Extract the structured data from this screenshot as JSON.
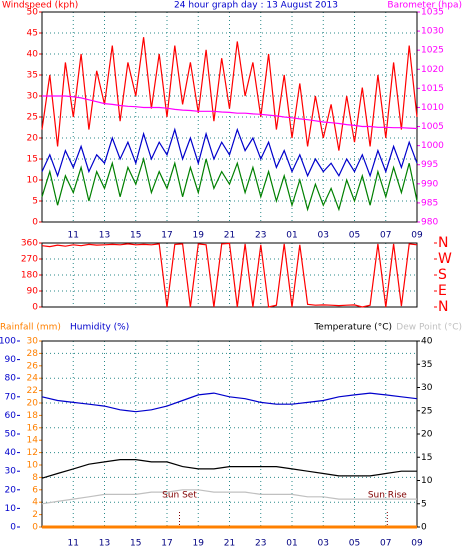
{
  "chart_data": [
    {
      "type": "line",
      "title": "24 hour graph day : 13 August 2013",
      "ylabel": "Windspeed (kph)",
      "y2label": "Barometer (hpa)",
      "x": [
        9,
        9.5,
        10,
        10.5,
        11,
        11.5,
        12,
        12.5,
        13,
        13.5,
        14,
        14.5,
        15,
        15.5,
        16,
        16.5,
        17,
        17.5,
        18,
        18.5,
        19,
        19.5,
        20,
        20.5,
        21,
        21.5,
        22,
        22.5,
        23,
        23.5,
        24,
        24.5,
        25,
        25.5,
        26,
        26.5,
        27,
        27.5,
        28,
        28.5,
        29,
        29.5,
        30,
        30.5,
        31,
        31.5,
        32,
        32.5,
        33
      ],
      "xlim": [
        9,
        33
      ],
      "xticks": [
        11,
        13,
        15,
        17,
        19,
        21,
        23,
        {
          "value": 25,
          "label": "01"
        },
        {
          "value": 27,
          "label": "03"
        },
        {
          "value": 29,
          "label": "05"
        },
        {
          "value": 31,
          "label": "07"
        },
        {
          "value": 33,
          "label": "09"
        }
      ],
      "ylim": [
        0,
        50
      ],
      "yticks": [
        0,
        5,
        10,
        15,
        20,
        25,
        30,
        35,
        40,
        45,
        50
      ],
      "y2lim": [
        980,
        1035
      ],
      "y2ticks": [
        980,
        985,
        990,
        995,
        1000,
        1005,
        1010,
        1015,
        1020,
        1025,
        1030,
        1035
      ],
      "grid": true,
      "series": [
        {
          "color": "#ff0000",
          "values": [
            22,
            35,
            18,
            38,
            25,
            40,
            22,
            36,
            28,
            42,
            24,
            38,
            30,
            44,
            27,
            40,
            25,
            42,
            28,
            38,
            26,
            41,
            24,
            39,
            27,
            43,
            30,
            38,
            25,
            40,
            22,
            35,
            20,
            33,
            18,
            30,
            20,
            28,
            17,
            30,
            19,
            32,
            18,
            35,
            20,
            38,
            22,
            42,
            25
          ]
        },
        {
          "color": "#0000cc",
          "values": [
            12,
            16,
            11,
            17,
            13,
            18,
            12,
            16,
            14,
            20,
            15,
            19,
            14,
            21,
            15,
            19,
            16,
            22,
            15,
            20,
            14,
            21,
            15,
            19,
            16,
            22,
            17,
            20,
            15,
            19,
            13,
            17,
            12,
            16,
            11,
            15,
            12,
            14,
            11,
            15,
            12,
            16,
            11,
            17,
            12,
            18,
            13,
            19,
            14
          ]
        },
        {
          "color": "#008000",
          "values": [
            6,
            12,
            4,
            11,
            7,
            13,
            5,
            12,
            8,
            14,
            6,
            13,
            9,
            15,
            7,
            12,
            8,
            14,
            6,
            13,
            7,
            15,
            8,
            12,
            9,
            14,
            7,
            13,
            6,
            12,
            5,
            11,
            4,
            10,
            3,
            9,
            4,
            8,
            3,
            10,
            5,
            11,
            4,
            12,
            6,
            13,
            7,
            14,
            5
          ]
        },
        {
          "color": "#ff00ff",
          "axis": "y2",
          "values": [
            1013,
            1013,
            1013,
            1013,
            1012.8,
            1012.5,
            1012,
            1011.5,
            1011,
            1010.8,
            1010.5,
            1010.3,
            1010.2,
            1010,
            1010,
            1010,
            1009.8,
            1009.5,
            1009.3,
            1009.2,
            1009,
            1009,
            1009,
            1008.8,
            1008.7,
            1008.5,
            1008.5,
            1008.3,
            1008.2,
            1008,
            1007.8,
            1007.5,
            1007.3,
            1007,
            1006.8,
            1006.5,
            1006.2,
            1006,
            1005.8,
            1005.5,
            1005.3,
            1005,
            1005,
            1004.8,
            1004.8,
            1004.7,
            1004.7,
            1004.6,
            1004.5
          ]
        }
      ]
    },
    {
      "type": "line",
      "x": [
        9,
        9.5,
        10,
        10.5,
        11,
        11.5,
        12,
        12.5,
        13,
        13.5,
        14,
        14.5,
        15,
        15.5,
        16,
        16.5,
        17,
        17.5,
        18,
        18.5,
        19,
        19.5,
        20,
        20.5,
        21,
        21.5,
        22,
        22.5,
        23,
        23.5,
        24,
        24.5,
        25,
        25.5,
        26,
        26.5,
        27,
        27.5,
        28,
        28.5,
        29,
        29.5,
        30,
        30.5,
        31,
        31.5,
        32,
        32.5,
        33
      ],
      "xlim": [
        9,
        33
      ],
      "ylim": [
        0,
        360
      ],
      "yticks": [
        0,
        90,
        180,
        270,
        360
      ],
      "y2lim": [
        0,
        360
      ],
      "y2ticks": [
        {
          "value": 0,
          "label": "N"
        },
        {
          "value": 90,
          "label": "E"
        },
        {
          "value": 180,
          "label": "S"
        },
        {
          "value": 270,
          "label": "W"
        },
        {
          "value": 360,
          "label": "N"
        }
      ],
      "grid": true,
      "series": [
        {
          "color": "#ff0000",
          "values": [
            345,
            340,
            348,
            342,
            350,
            345,
            352,
            348,
            350,
            352,
            350,
            355,
            350,
            352,
            350,
            355,
            0,
            352,
            355,
            0,
            355,
            350,
            0,
            355,
            358,
            0,
            355,
            0,
            350,
            0,
            10,
            355,
            0,
            350,
            15,
            10,
            12,
            10,
            8,
            10,
            12,
            0,
            10,
            355,
            0,
            355,
            5,
            355,
            350
          ]
        }
      ]
    },
    {
      "type": "line",
      "x": [
        9,
        10,
        11,
        12,
        13,
        14,
        15,
        16,
        17,
        18,
        19,
        20,
        21,
        22,
        23,
        24,
        25,
        26,
        27,
        28,
        29,
        30,
        31,
        32,
        33
      ],
      "xlim": [
        9,
        33
      ],
      "xticks": [
        11,
        13,
        15,
        17,
        19,
        21,
        23,
        {
          "value": 25,
          "label": "01"
        },
        {
          "value": 27,
          "label": "03"
        },
        {
          "value": 29,
          "label": "05"
        },
        {
          "value": 31,
          "label": "07"
        },
        {
          "value": 33,
          "label": "09"
        }
      ],
      "ylim": [
        0,
        30
      ],
      "yticks": [
        0,
        2,
        4,
        6,
        8,
        10,
        12,
        14,
        16,
        18,
        20,
        22,
        24,
        26,
        28,
        30
      ],
      "y3lim": [
        0,
        100
      ],
      "y3ticks": [
        0,
        10,
        20,
        30,
        40,
        50,
        60,
        70,
        80,
        90,
        100
      ],
      "y2lim": [
        0,
        40
      ],
      "y2ticks": [
        0,
        5,
        10,
        15,
        20,
        25,
        30,
        35,
        40
      ],
      "grid": true,
      "series": [
        {
          "name": "Rainfall (mm)",
          "color": "#ff8000",
          "values": [
            0,
            0,
            0,
            0,
            0,
            0,
            0,
            0,
            0,
            0,
            0,
            0,
            0,
            0,
            0,
            0,
            0,
            0,
            0,
            0,
            0,
            0,
            0,
            0,
            0
          ]
        },
        {
          "name": "Humidity (%)",
          "color": "#0000cc",
          "axis": "y3",
          "values": [
            70,
            68,
            67,
            66,
            65,
            63,
            62,
            63,
            65,
            68,
            71,
            72,
            70,
            69,
            67,
            66,
            66,
            67,
            68,
            70,
            71,
            72,
            71,
            70,
            69
          ]
        },
        {
          "name": "Temperature (°C)",
          "color": "#000000",
          "axis": "y2",
          "values": [
            10.5,
            11.5,
            12.5,
            13.5,
            14,
            14.5,
            14.5,
            14,
            14,
            13,
            12.5,
            12.5,
            13,
            13,
            13,
            13,
            12.5,
            12,
            11.5,
            11,
            11,
            11,
            11.5,
            12,
            12
          ]
        },
        {
          "name": "Dew Point (°C)",
          "color": "#c0c0c0",
          "axis": "y2",
          "values": [
            5,
            5.5,
            6,
            6.5,
            7,
            7,
            7,
            7.5,
            7.5,
            8,
            8,
            7.5,
            7.5,
            7.5,
            7,
            7,
            7,
            6.5,
            6.5,
            6,
            6,
            6,
            6,
            6,
            6
          ]
        }
      ],
      "annotations": [
        {
          "text": "Sun Set",
          "x": 17.8
        },
        {
          "text": "Sun Rise",
          "x": 31.1
        }
      ]
    }
  ]
}
